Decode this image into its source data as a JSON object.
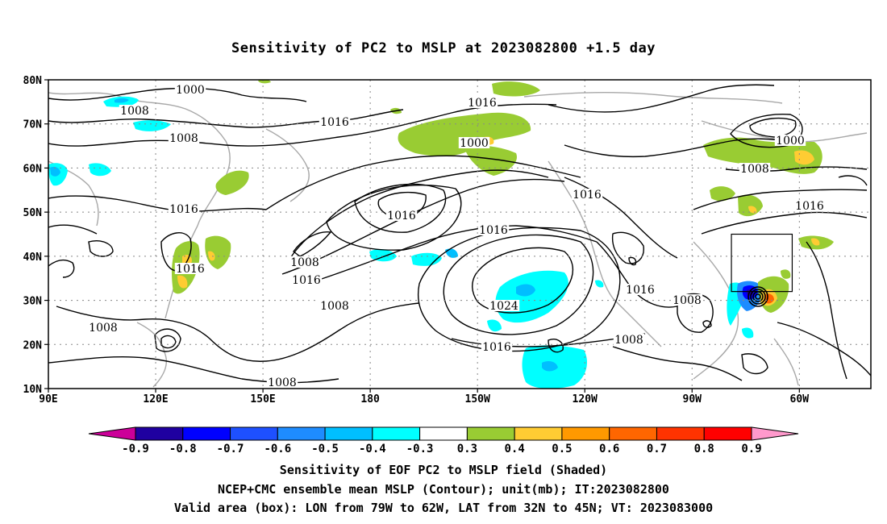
{
  "title": "Sensitivity of PC2 to MSLP at 2023082800 +1.5 day",
  "lat_labels": [
    "80N",
    "70N",
    "60N",
    "50N",
    "40N",
    "30N",
    "20N",
    "10N"
  ],
  "lon_labels": [
    "90E",
    "120E",
    "150E",
    "180",
    "150W",
    "120W",
    "90W",
    "60W"
  ],
  "contour_labels": [
    "1000",
    "1008",
    "1016",
    "1008",
    "1016",
    "1016",
    "1000",
    "1008",
    "1016",
    "1016",
    "1016",
    "1008",
    "1016",
    "1016",
    "1008",
    "1024",
    "1016",
    "1008",
    "1016",
    "1008",
    "1000",
    "1008",
    "1016",
    "1008"
  ],
  "colorbar": {
    "labels": [
      "-0.9",
      "-0.8",
      "-0.7",
      "-0.6",
      "-0.5",
      "-0.4",
      "-0.3",
      "0.3",
      "0.4",
      "0.5",
      "0.6",
      "0.7",
      "0.8",
      "0.9"
    ],
    "colors": [
      "#1f00a0",
      "#0000ff",
      "#1e50ff",
      "#1e8cff",
      "#00bfff",
      "#00ffff",
      "#ffffff",
      "#99cc33",
      "#ffcc33",
      "#ff9900",
      "#ff6600",
      "#ff3300",
      "#ff0000"
    ],
    "left_arrow_color": "#cc0099",
    "right_arrow_color": "#ff99cc"
  },
  "valid_box": {
    "lon_w": 79,
    "lon_e": 62,
    "lat_s": 32,
    "lat_n": 45
  },
  "captions": [
    "Sensitivity of EOF PC2 to MSLP field (Shaded)",
    "NCEP+CMC ensemble mean MSLP (Contour); unit(mb); IT:2023082800",
    "Valid area (box): LON from 79W to 62W, LAT from 32N to 45N; VT: 2023083000"
  ]
}
